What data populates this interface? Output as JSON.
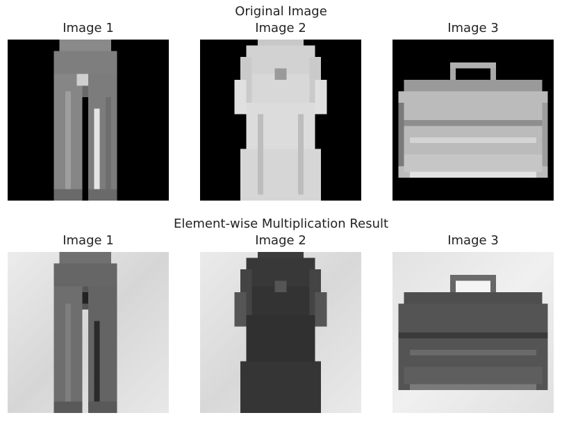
{
  "figure": {
    "rows": [
      {
        "title": "Original Image",
        "panels": [
          {
            "title": "Image 1",
            "content": "trouser",
            "style": "original"
          },
          {
            "title": "Image 2",
            "content": "dress",
            "style": "original"
          },
          {
            "title": "Image 3",
            "content": "bag",
            "style": "original"
          }
        ]
      },
      {
        "title": "Element-wise Multiplication Result",
        "panels": [
          {
            "title": "Image 1",
            "content": "trouser",
            "style": "multiplied"
          },
          {
            "title": "Image 2",
            "content": "dress",
            "style": "multiplied"
          },
          {
            "title": "Image 3",
            "content": "bag",
            "style": "multiplied"
          }
        ]
      }
    ],
    "colors": {
      "original_background": "#000000",
      "multiplied_background": "#e6e6e6"
    }
  }
}
